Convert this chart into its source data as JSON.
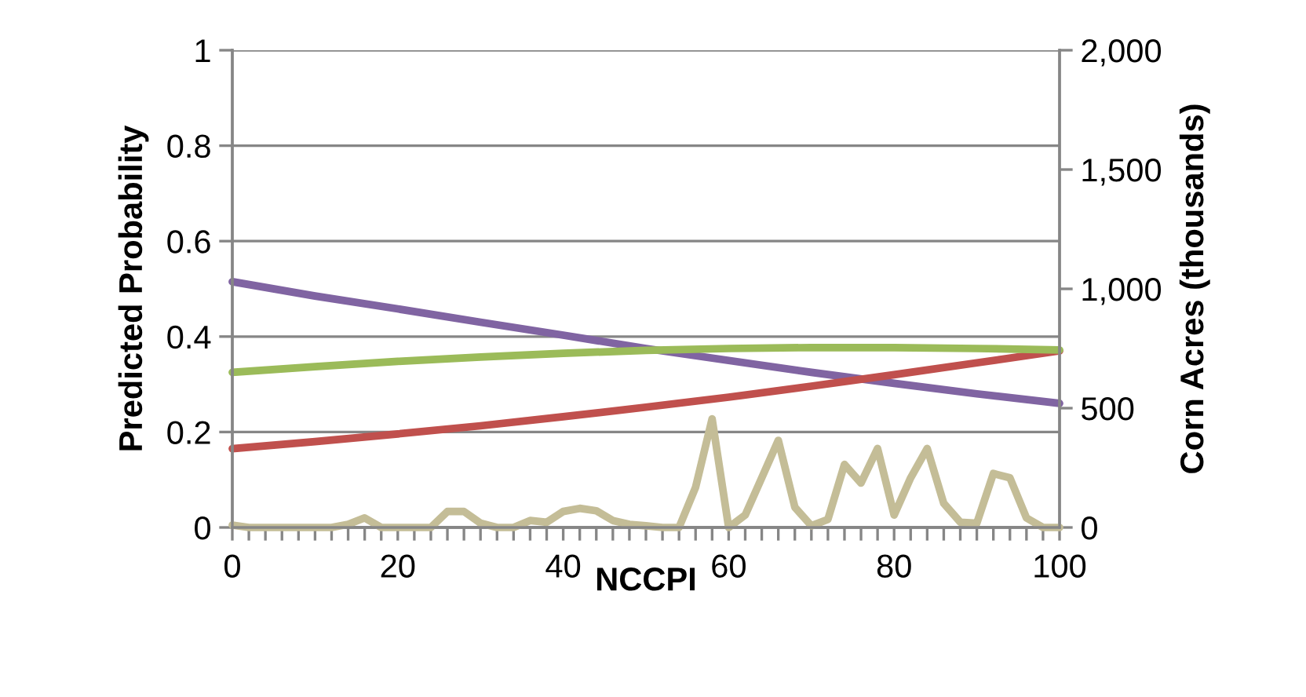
{
  "chart_data": {
    "type": "line",
    "xlabel": "NCCPI",
    "ylabel": "Predicted Probability",
    "y2label": "Corn Acres (thousands)",
    "xlim": [
      0,
      100
    ],
    "xticks": [
      0,
      {
        "value": 2,
        "label": null
      },
      {
        "value": 4,
        "label": null
      },
      {
        "value": 6,
        "label": null
      },
      {
        "value": 8,
        "label": null
      },
      {
        "value": 10,
        "label": null
      },
      {
        "value": 12,
        "label": null
      },
      {
        "value": 14,
        "label": null
      },
      {
        "value": 16,
        "label": null
      },
      {
        "value": 18,
        "label": null
      },
      20,
      {
        "value": 22,
        "label": null
      },
      {
        "value": 24,
        "label": null
      },
      {
        "value": 26,
        "label": null
      },
      {
        "value": 28,
        "label": null
      },
      {
        "value": 30,
        "label": null
      },
      {
        "value": 32,
        "label": null
      },
      {
        "value": 34,
        "label": null
      },
      {
        "value": 36,
        "label": null
      },
      {
        "value": 38,
        "label": null
      },
      40,
      {
        "value": 42,
        "label": null
      },
      {
        "value": 44,
        "label": null
      },
      {
        "value": 46,
        "label": null
      },
      {
        "value": 48,
        "label": null
      },
      {
        "value": 50,
        "label": null
      },
      {
        "value": 52,
        "label": null
      },
      {
        "value": 54,
        "label": null
      },
      {
        "value": 56,
        "label": null
      },
      {
        "value": 58,
        "label": null
      },
      60,
      {
        "value": 62,
        "label": null
      },
      {
        "value": 64,
        "label": null
      },
      {
        "value": 66,
        "label": null
      },
      {
        "value": 68,
        "label": null
      },
      {
        "value": 70,
        "label": null
      },
      {
        "value": 72,
        "label": null
      },
      {
        "value": 74,
        "label": null
      },
      {
        "value": 76,
        "label": null
      },
      {
        "value": 78,
        "label": null
      },
      80,
      {
        "value": 82,
        "label": null
      },
      {
        "value": 84,
        "label": null
      },
      {
        "value": 86,
        "label": null
      },
      {
        "value": 88,
        "label": null
      },
      {
        "value": 90,
        "label": null
      },
      {
        "value": 92,
        "label": null
      },
      {
        "value": 94,
        "label": null
      },
      {
        "value": 96,
        "label": null
      },
      {
        "value": 98,
        "label": null
      },
      100
    ],
    "ylim": [
      0,
      1
    ],
    "yticks": [
      0,
      0.2,
      0.4,
      0.6,
      0.8,
      1
    ],
    "y2lim": [
      0,
      2000
    ],
    "y2ticks": [
      0,
      {
        "value": 500,
        "label": "500"
      },
      {
        "value": 1000,
        "label": "1,000"
      },
      {
        "value": 1500,
        "label": "1,500"
      },
      {
        "value": 2000,
        "label": "2,000"
      }
    ],
    "grid": "y",
    "marker": "none",
    "line_style": "solid",
    "series": [
      {
        "color": "#8064a2",
        "x": [
          0,
          10,
          20,
          30,
          40,
          50,
          60,
          70,
          80,
          90,
          100
        ],
        "values": [
          0.515,
          0.485,
          0.458,
          0.43,
          0.403,
          0.375,
          0.35,
          0.325,
          0.302,
          0.28,
          0.26
        ]
      },
      {
        "color": "#c0504d",
        "x": [
          0,
          10,
          20,
          30,
          40,
          50,
          60,
          70,
          80,
          90,
          100
        ],
        "values": [
          0.165,
          0.18,
          0.196,
          0.213,
          0.232,
          0.252,
          0.273,
          0.296,
          0.32,
          0.345,
          0.37
        ]
      },
      {
        "color": "#9bbb59",
        "x": [
          0,
          10,
          20,
          30,
          40,
          50,
          60,
          70,
          80,
          90,
          100
        ],
        "values": [
          0.325,
          0.337,
          0.348,
          0.357,
          0.365,
          0.371,
          0.375,
          0.377,
          0.377,
          0.375,
          0.372
        ]
      },
      {
        "color": "#c4bd97",
        "axis": "y2",
        "x": [
          0,
          2,
          4,
          6,
          8,
          10,
          12,
          14,
          16,
          18,
          20,
          22,
          24,
          26,
          28,
          30,
          32,
          34,
          36,
          38,
          40,
          42,
          44,
          46,
          48,
          50,
          52,
          54,
          56,
          58,
          60,
          62,
          64,
          66,
          68,
          70,
          72,
          74,
          76,
          78,
          80,
          82,
          84,
          86,
          88,
          90,
          92,
          94,
          96,
          98,
          100
        ],
        "values": [
          10,
          0,
          0,
          0,
          0,
          0,
          0,
          13,
          40,
          0,
          0,
          0,
          0,
          67,
          67,
          18,
          0,
          0,
          29,
          22,
          67,
          80,
          70,
          29,
          13,
          7,
          0,
          0,
          168,
          455,
          0,
          52,
          208,
          365,
          85,
          7,
          34,
          264,
          186,
          331,
          52,
          208,
          331,
          101,
          22,
          18,
          226,
          208,
          40,
          0,
          0
        ]
      }
    ]
  }
}
